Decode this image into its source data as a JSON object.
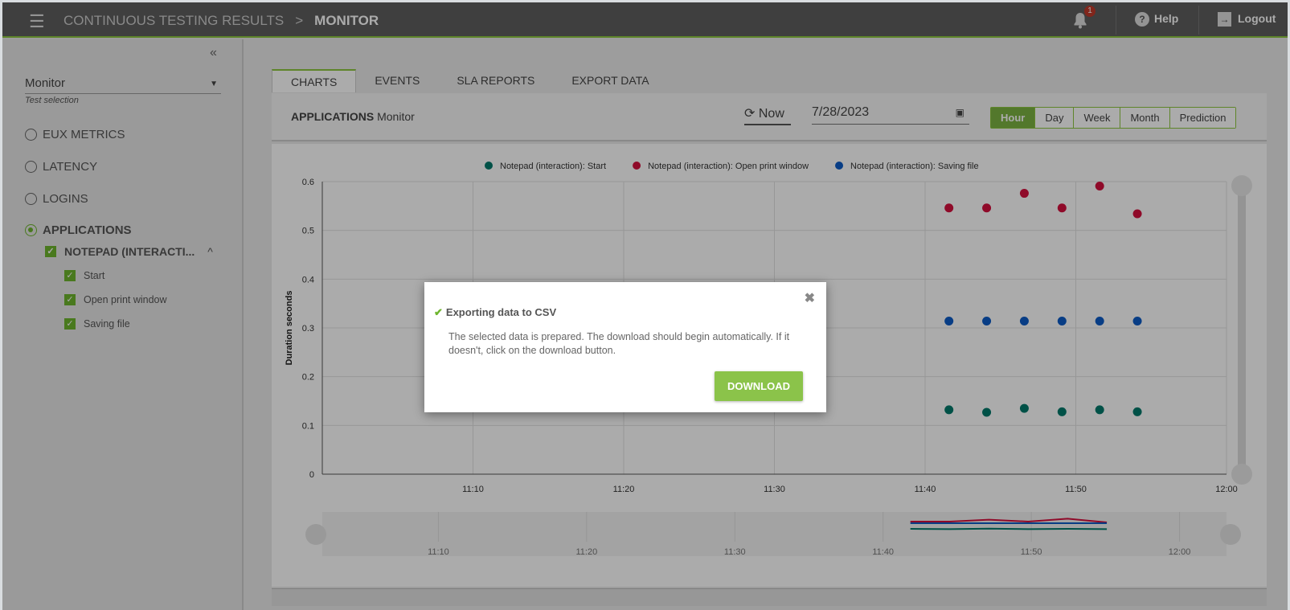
{
  "header": {
    "breadcrumb_root": "CONTINUOUS TESTING RESULTS",
    "breadcrumb_current": "MONITOR",
    "notifications_count": "1",
    "help": "Help",
    "logout": "Logout"
  },
  "sidebar": {
    "test_selection_value": "Monitor",
    "test_selection_label": "Test selection",
    "metrics": [
      {
        "label": "EUX METRICS",
        "selected": false
      },
      {
        "label": "LATENCY",
        "selected": false
      },
      {
        "label": "LOGINS",
        "selected": false
      },
      {
        "label": "APPLICATIONS",
        "selected": true
      }
    ],
    "application": {
      "label": "NOTEPAD (INTERACTI...",
      "checked": true,
      "items": [
        {
          "label": "Start",
          "checked": true
        },
        {
          "label": "Open print window",
          "checked": true
        },
        {
          "label": "Saving file",
          "checked": true
        }
      ]
    }
  },
  "tabs": [
    {
      "label": "CHARTS",
      "active": true
    },
    {
      "label": "EVENTS"
    },
    {
      "label": "SLA REPORTS"
    },
    {
      "label": "EXPORT DATA"
    }
  ],
  "toolbar": {
    "section": "APPLICATIONS",
    "test": "Monitor",
    "now": "Now",
    "date": "7/28/2023",
    "ranges": [
      "Hour",
      "Day",
      "Week",
      "Month",
      "Prediction"
    ],
    "active_range": "Hour"
  },
  "chart_data": {
    "type": "scatter",
    "ylabel": "Duration seconds",
    "ylim": [
      0,
      0.6
    ],
    "yticks": [
      "0",
      "0.1",
      "0.2",
      "0.3",
      "0.4",
      "0.5",
      "0.6"
    ],
    "xlim": [
      "11:00",
      "12:00"
    ],
    "xticks": [
      "11:10",
      "11:20",
      "11:30",
      "11:40",
      "11:50",
      "12:00"
    ],
    "grid": true,
    "legend": "top",
    "navigator_ticks": [
      "11:10",
      "11:20",
      "11:30",
      "11:40",
      "11:50",
      "12:00"
    ],
    "x": [
      "11:41:35",
      "11:44:05",
      "11:46:35",
      "11:49:05",
      "11:51:35",
      "11:54:05"
    ],
    "series": [
      {
        "name": "Notepad (interaction): Start",
        "color": "#00796b",
        "values": [
          0.132,
          0.127,
          0.135,
          0.128,
          0.132,
          0.128
        ]
      },
      {
        "name": "Notepad (interaction): Open print window",
        "color": "#d50f3e",
        "values": [
          0.546,
          0.546,
          0.576,
          0.546,
          0.591,
          0.534
        ]
      },
      {
        "name": "Notepad (interaction): Saving file",
        "color": "#0d5bc6",
        "values": [
          0.314,
          0.314,
          0.314,
          0.314,
          0.314,
          0.314
        ]
      }
    ]
  },
  "modal": {
    "title": "Exporting data to CSV",
    "message": "The selected data is prepared. The download should begin automatically. If it doesn't, click on the download button.",
    "button": "DOWNLOAD"
  }
}
